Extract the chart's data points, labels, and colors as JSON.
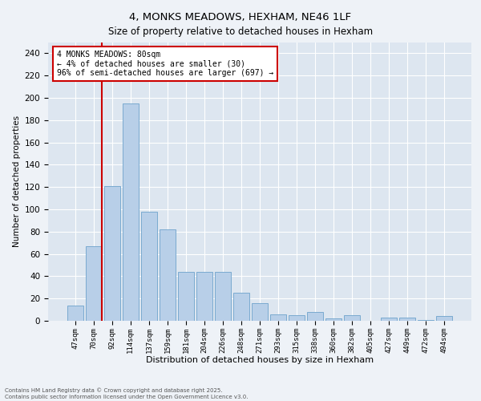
{
  "title1": "4, MONKS MEADOWS, HEXHAM, NE46 1LF",
  "title2": "Size of property relative to detached houses in Hexham",
  "xlabel": "Distribution of detached houses by size in Hexham",
  "ylabel": "Number of detached properties",
  "categories": [
    "47sqm",
    "70sqm",
    "92sqm",
    "114sqm",
    "137sqm",
    "159sqm",
    "181sqm",
    "204sqm",
    "226sqm",
    "248sqm",
    "271sqm",
    "293sqm",
    "315sqm",
    "338sqm",
    "360sqm",
    "382sqm",
    "405sqm",
    "427sqm",
    "449sqm",
    "472sqm",
    "494sqm"
  ],
  "values": [
    14,
    67,
    121,
    195,
    98,
    82,
    44,
    44,
    44,
    25,
    16,
    6,
    5,
    8,
    2,
    5,
    0,
    3,
    3,
    1,
    4
  ],
  "bar_color": "#b8cfe8",
  "bar_edge_color": "#7aaad0",
  "red_line_color": "#cc0000",
  "annotation_text": "4 MONKS MEADOWS: 80sqm\n← 4% of detached houses are smaller (30)\n96% of semi-detached houses are larger (697) →",
  "annotation_box_color": "#ffffff",
  "annotation_box_edge": "#cc0000",
  "ylim": [
    0,
    250
  ],
  "yticks": [
    0,
    20,
    40,
    60,
    80,
    100,
    120,
    140,
    160,
    180,
    200,
    220,
    240
  ],
  "footer_text": "Contains HM Land Registry data © Crown copyright and database right 2025.\nContains public sector information licensed under the Open Government Licence v3.0.",
  "bg_color": "#eef2f7",
  "plot_bg_color": "#dde6f0",
  "title1_fontsize": 9.5,
  "title2_fontsize": 8.5,
  "xlabel_fontsize": 8,
  "ylabel_fontsize": 7.5,
  "ytick_fontsize": 7.5,
  "xtick_fontsize": 6.5,
  "annotation_fontsize": 7,
  "footer_fontsize": 5
}
